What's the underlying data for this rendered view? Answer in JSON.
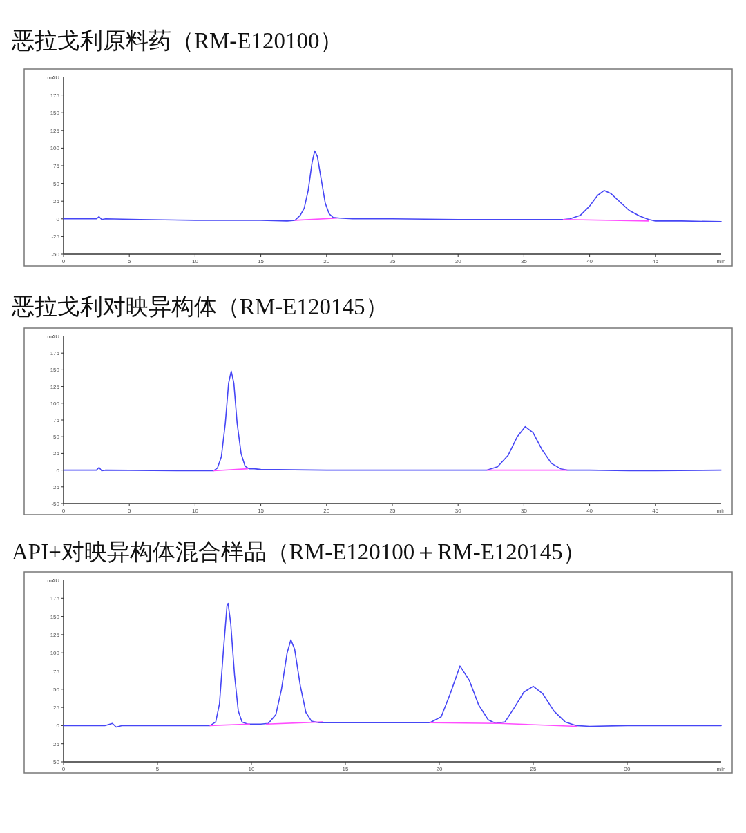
{
  "chart_data": [
    {
      "type": "line",
      "title": "恶拉戈利原料药（RM-E120100）",
      "xlabel": "min",
      "ylabel": "mAU",
      "xlim": [
        0,
        50
      ],
      "ylim": [
        -50,
        200
      ],
      "xticks": [
        0,
        5,
        10,
        15,
        20,
        25,
        30,
        35,
        40,
        45
      ],
      "yticks": [
        -50,
        -25,
        0,
        25,
        50,
        75,
        100,
        125,
        150,
        175
      ],
      "series": [
        {
          "color": "#4646f5",
          "x": [
            0,
            2.5,
            2.7,
            2.9,
            3.2,
            5.8,
            10,
            15,
            17,
            17.6,
            18.0,
            18.3,
            18.6,
            18.9,
            19.1,
            19.3,
            19.6,
            19.9,
            20.2,
            20.5,
            21,
            22,
            25,
            30,
            35,
            38,
            38.5,
            39.3,
            40,
            40.6,
            41.1,
            41.6,
            42.3,
            43,
            43.8,
            44.5,
            45,
            47,
            50
          ],
          "values": [
            0,
            0,
            3,
            -1,
            0,
            -1,
            -2,
            -2,
            -3,
            -2,
            5,
            15,
            40,
            80,
            96,
            88,
            55,
            22,
            7,
            2,
            1,
            0,
            0,
            -1,
            -1,
            -1,
            0,
            5,
            18,
            33,
            40,
            36,
            24,
            12,
            4,
            -1,
            -3,
            -3,
            -4
          ]
        },
        {
          "color": "#ff4dff",
          "x": [
            17.6,
            20.8
          ],
          "values": [
            -2,
            1
          ]
        },
        {
          "color": "#ff4dff",
          "x": [
            38,
            44.5
          ],
          "values": [
            -1,
            -3
          ]
        }
      ]
    },
    {
      "type": "line",
      "title": "恶拉戈利对映异构体（RM-E120145）",
      "xlabel": "min",
      "ylabel": "mAU",
      "xlim": [
        0,
        50
      ],
      "ylim": [
        -50,
        200
      ],
      "xticks": [
        0,
        5,
        10,
        15,
        20,
        25,
        30,
        35,
        40,
        45
      ],
      "yticks": [
        -50,
        -25,
        0,
        25,
        50,
        75,
        100,
        125,
        150,
        175
      ],
      "series": [
        {
          "color": "#4646f5",
          "x": [
            0,
            2.5,
            2.7,
            2.9,
            3.2,
            10,
            11.4,
            11.7,
            12.0,
            12.3,
            12.55,
            12.75,
            12.95,
            13.2,
            13.5,
            13.8,
            14.1,
            14.5,
            15,
            20,
            30,
            32.2,
            33,
            33.8,
            34.5,
            35.1,
            35.7,
            36.4,
            37.1,
            37.8,
            38.3,
            40,
            43,
            45,
            50
          ],
          "values": [
            0,
            0,
            4,
            -1,
            0,
            -1,
            -1,
            3,
            20,
            70,
            130,
            148,
            130,
            70,
            25,
            6,
            2,
            2,
            1,
            0,
            0,
            0,
            5,
            22,
            50,
            65,
            56,
            30,
            10,
            2,
            0,
            0,
            -1,
            -1,
            0
          ]
        },
        {
          "color": "#ff4dff",
          "x": [
            11.4,
            14.0
          ],
          "values": [
            -1,
            2
          ]
        },
        {
          "color": "#ff4dff",
          "x": [
            32.2,
            38.3
          ],
          "values": [
            0,
            0
          ]
        }
      ]
    },
    {
      "type": "line",
      "title": "API+对映异构体混合样品（RM-E120100＋RM-E120145）",
      "xlabel": "min",
      "ylabel": "mAU",
      "xlim": [
        0,
        35
      ],
      "ylim": [
        -50,
        200
      ],
      "xticks": [
        0,
        5,
        10,
        15,
        20,
        25,
        30
      ],
      "yticks": [
        -50,
        -25,
        0,
        25,
        50,
        75,
        100,
        125,
        150,
        175
      ],
      "series": [
        {
          "color": "#4646f5",
          "x": [
            0,
            2.2,
            2.6,
            2.8,
            3.1,
            5,
            7.8,
            8.1,
            8.3,
            8.5,
            8.7,
            8.76,
            8.9,
            9.1,
            9.3,
            9.5,
            9.8,
            10.5,
            10.9,
            11.3,
            11.6,
            11.9,
            12.1,
            12.3,
            12.6,
            12.9,
            13.2,
            13.6,
            15,
            17,
            19.5,
            20.1,
            20.6,
            21.1,
            21.6,
            22.1,
            22.6,
            23.0,
            23.5,
            24.0,
            24.5,
            25.0,
            25.5,
            26.1,
            26.7,
            27.3,
            28,
            30,
            35
          ],
          "values": [
            0,
            0,
            3,
            -2,
            0,
            0,
            0,
            5,
            30,
            100,
            165,
            168,
            140,
            70,
            20,
            5,
            2,
            2,
            3,
            15,
            50,
            100,
            118,
            105,
            55,
            18,
            6,
            4,
            4,
            4,
            4,
            12,
            45,
            82,
            62,
            28,
            8,
            3,
            5,
            25,
            46,
            54,
            44,
            20,
            5,
            0,
            -1,
            0,
            0
          ]
        },
        {
          "color": "#ff4dff",
          "x": [
            7.8,
            9.9
          ],
          "values": [
            0,
            2
          ]
        },
        {
          "color": "#ff4dff",
          "x": [
            10.8,
            13.8
          ],
          "values": [
            2,
            5
          ]
        },
        {
          "color": "#ff4dff",
          "x": [
            19.5,
            23.2,
            27.3
          ],
          "values": [
            4,
            3,
            -1
          ]
        }
      ]
    }
  ]
}
